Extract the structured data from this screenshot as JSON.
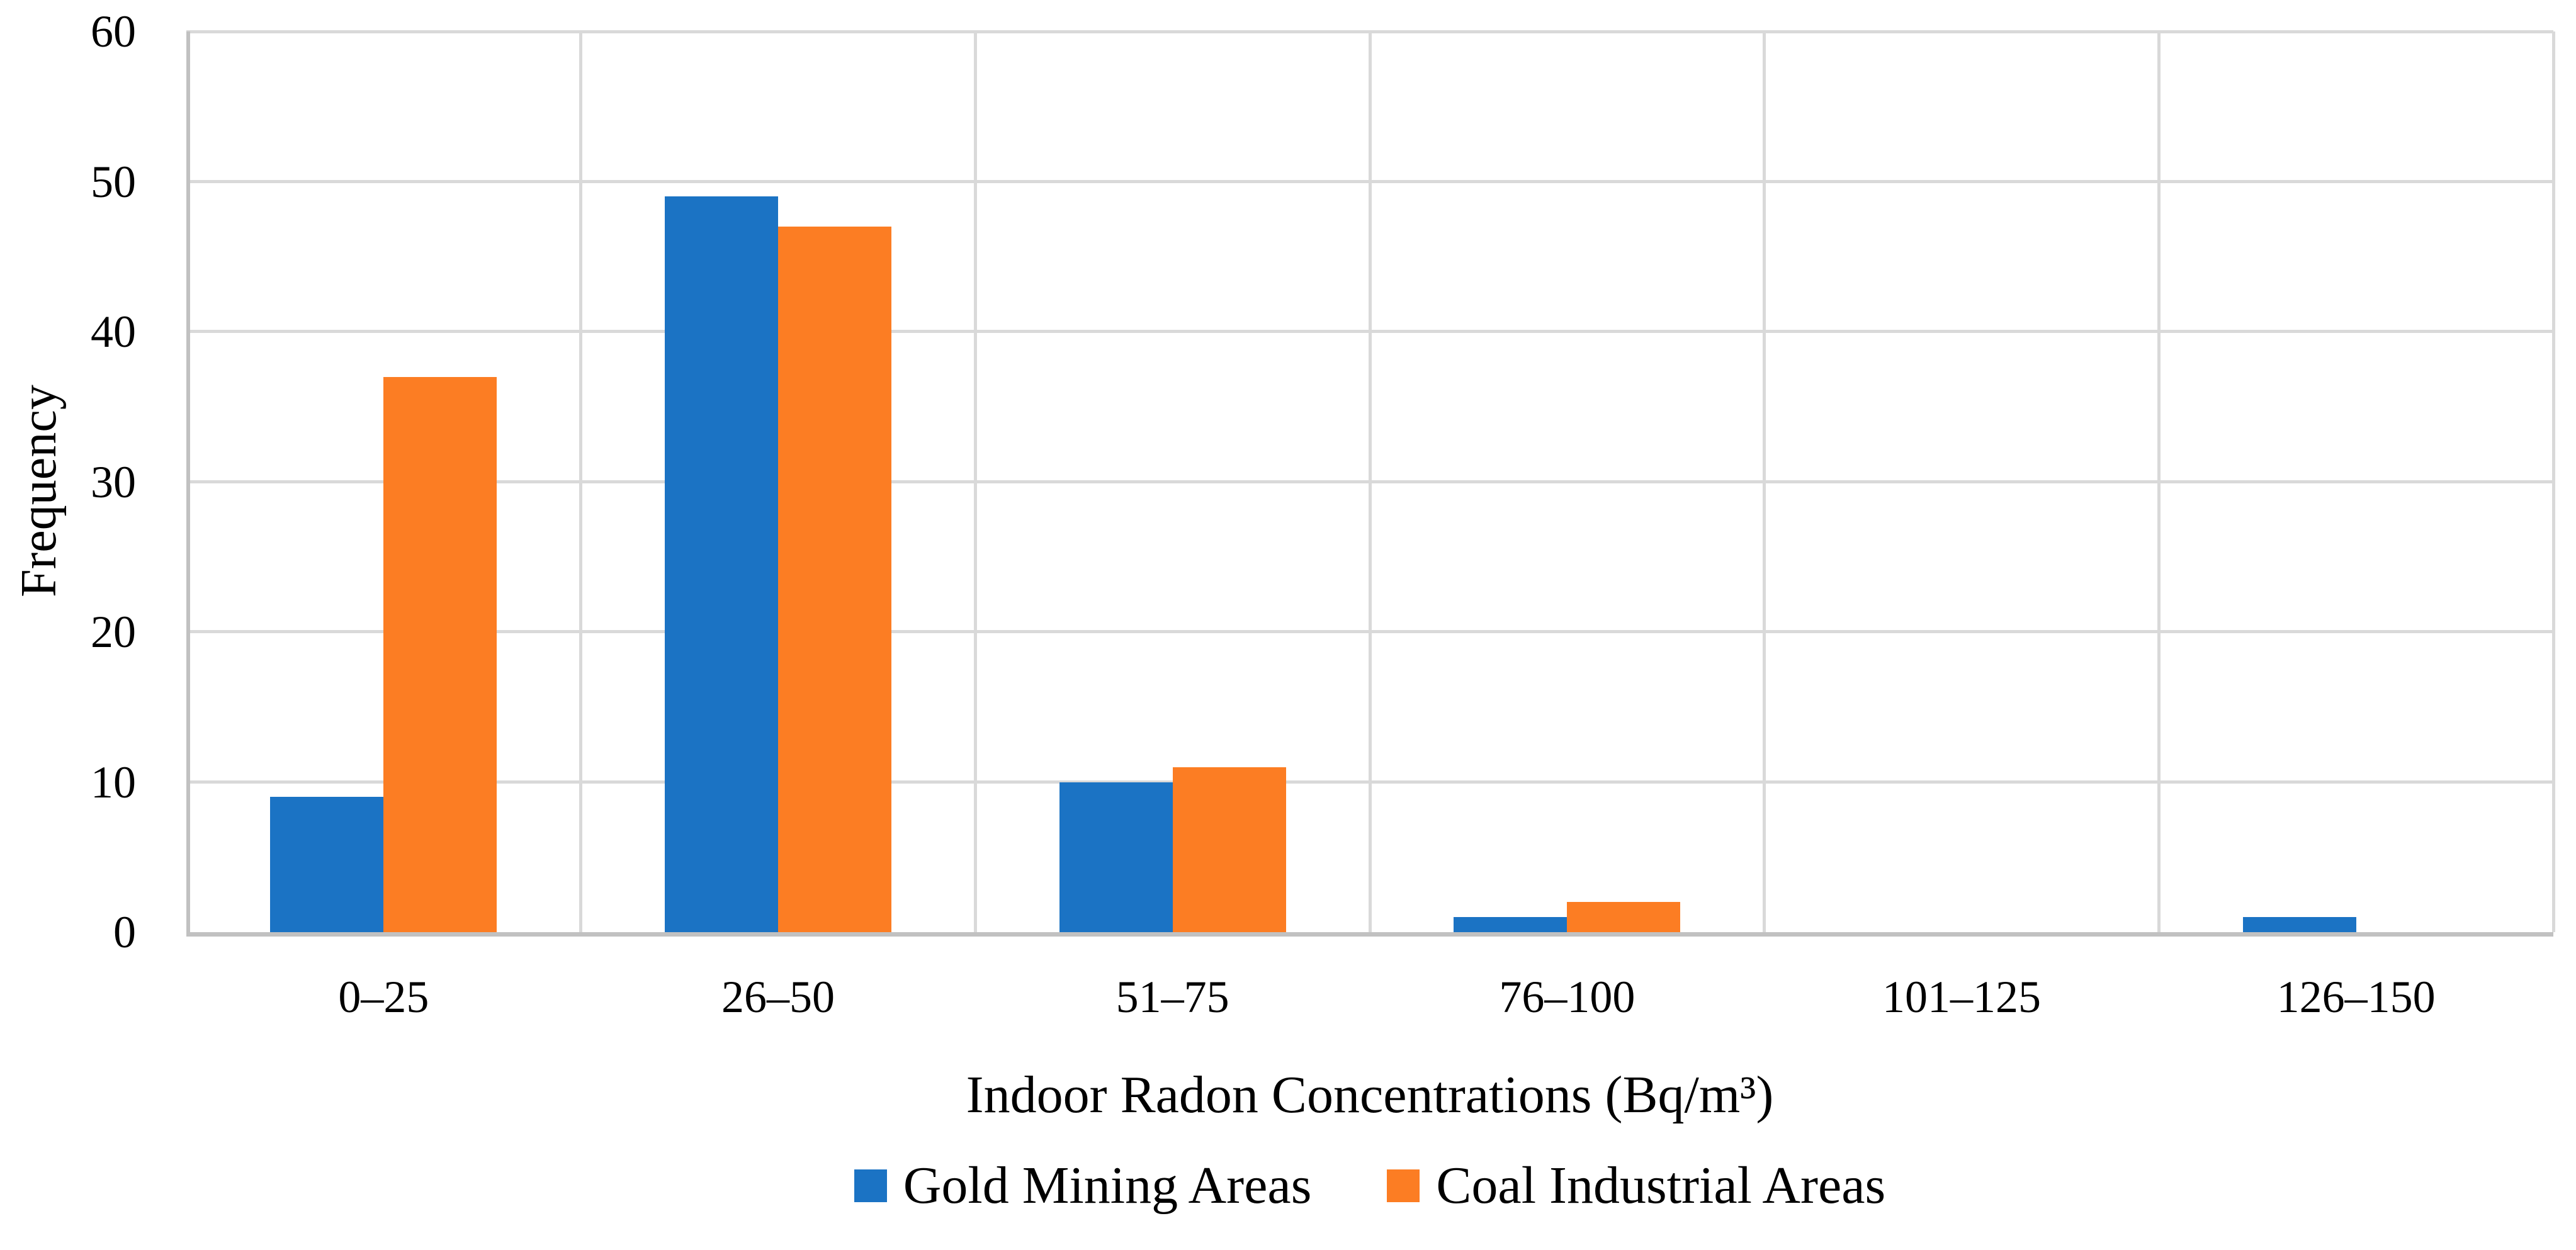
{
  "chart_data": {
    "type": "bar",
    "title": "",
    "categories": [
      "0–25",
      "26–50",
      "51–75",
      "76–100",
      "101–125",
      "126–150"
    ],
    "series": [
      {
        "name": "Gold Mining Areas",
        "color": "#1b73c4",
        "values": [
          9,
          49,
          10,
          1,
          0,
          1
        ]
      },
      {
        "name": "Coal Industrial Areas",
        "color": "#fc7d23",
        "values": [
          37,
          47,
          11,
          2,
          0,
          0
        ]
      }
    ],
    "xlabel": "Indoor Radon Concentrations (Bq/m³)",
    "ylabel": "Frequency",
    "ylim": [
      0,
      60
    ],
    "yticks": [
      0,
      10,
      20,
      30,
      40,
      50,
      60
    ],
    "grid": "on",
    "legend_position": "bottom"
  },
  "colors": {
    "gridline": "#d9d9d9",
    "axis_line": "#c1c1c1",
    "background": "#ffffff",
    "text": "#000000"
  }
}
